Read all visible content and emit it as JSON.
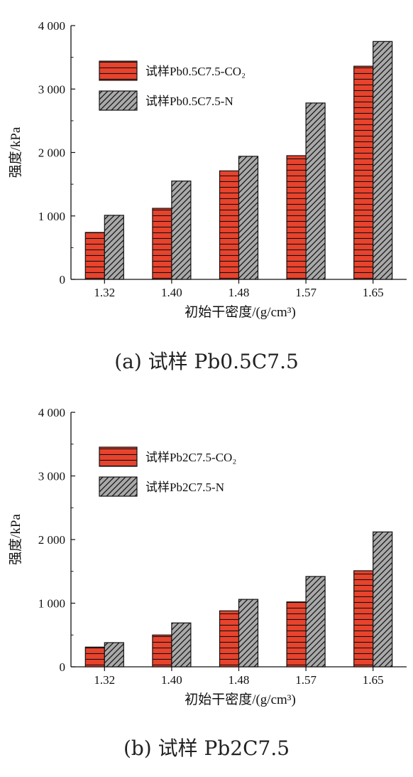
{
  "colors": {
    "series_a_fill": "#e8432d",
    "series_b_fill": "#a9a9a9",
    "stroke": "#111111"
  },
  "chart_data": [
    {
      "type": "bar",
      "caption": "(a) 试样 Pb0.5C7.5",
      "xlabel": "初始干密度/(g/cm³)",
      "ylabel": "强度/kPa",
      "ylim": [
        0,
        4000
      ],
      "yticks": [
        0,
        1000,
        2000,
        3000,
        4000
      ],
      "ytick_labels": [
        "0",
        "1 000",
        "2 000",
        "3 000",
        "4 000"
      ],
      "categories": [
        "1.32",
        "1.40",
        "1.48",
        "1.57",
        "1.65"
      ],
      "legend_position": "upper-left",
      "series": [
        {
          "name": "试样Pb0.5C7.5-CO₂",
          "pattern": "horizontal-lines",
          "values": [
            740,
            1120,
            1710,
            1950,
            3360
          ]
        },
        {
          "name": "试样Pb0.5C7.5-N",
          "pattern": "diagonal-hatch",
          "values": [
            1010,
            1550,
            1940,
            2780,
            3750
          ]
        }
      ]
    },
    {
      "type": "bar",
      "caption": "(b) 试样 Pb2C7.5",
      "xlabel": "初始干密度/(g/cm³)",
      "ylabel": "强度/kPa",
      "ylim": [
        0,
        4000
      ],
      "yticks": [
        0,
        1000,
        2000,
        3000,
        4000
      ],
      "ytick_labels": [
        "0",
        "1 000",
        "2 000",
        "3 000",
        "4 000"
      ],
      "categories": [
        "1.32",
        "1.40",
        "1.48",
        "1.57",
        "1.65"
      ],
      "legend_position": "upper-left",
      "series": [
        {
          "name": "试样Pb2C7.5-CO₂",
          "pattern": "horizontal-lines",
          "values": [
            310,
            500,
            880,
            1020,
            1510
          ]
        },
        {
          "name": "试样Pb2C7.5-N",
          "pattern": "diagonal-hatch",
          "values": [
            380,
            690,
            1060,
            1420,
            2120
          ]
        }
      ]
    }
  ]
}
